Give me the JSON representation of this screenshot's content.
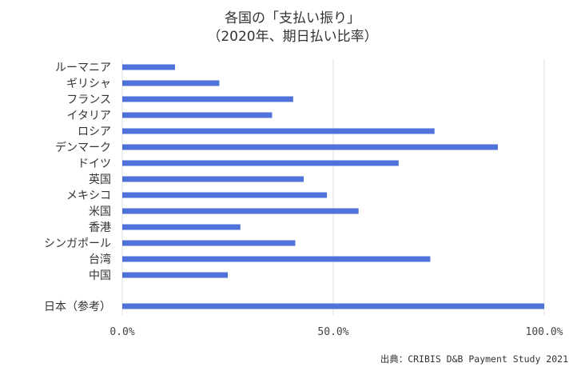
{
  "chart_data": {
    "type": "bar",
    "orientation": "horizontal",
    "title": "各国の「支払い振り」",
    "subtitle": "（2020年、期日払い比率）",
    "categories": [
      "ルーマニア",
      "ギリシャ",
      "フランス",
      "イタリア",
      "ロシア",
      "デンマーク",
      "ドイツ",
      "英国",
      "メキシコ",
      "米国",
      "香港",
      "シンガポール",
      "台湾",
      "中国",
      "日本（参考）"
    ],
    "values": [
      12.5,
      23.0,
      40.5,
      35.5,
      74.0,
      89.0,
      65.5,
      43.0,
      48.5,
      56.0,
      28.0,
      41.0,
      73.0,
      25.0,
      100.0
    ],
    "xlim": [
      0,
      100
    ],
    "xticks": [
      "0.0%",
      "50.0%",
      "100.0%"
    ],
    "xtick_values": [
      0,
      50,
      100
    ],
    "grid": true,
    "bar_color": "#4f73d9",
    "source": "出典：CRIBIS D&B Payment Study 2021"
  }
}
